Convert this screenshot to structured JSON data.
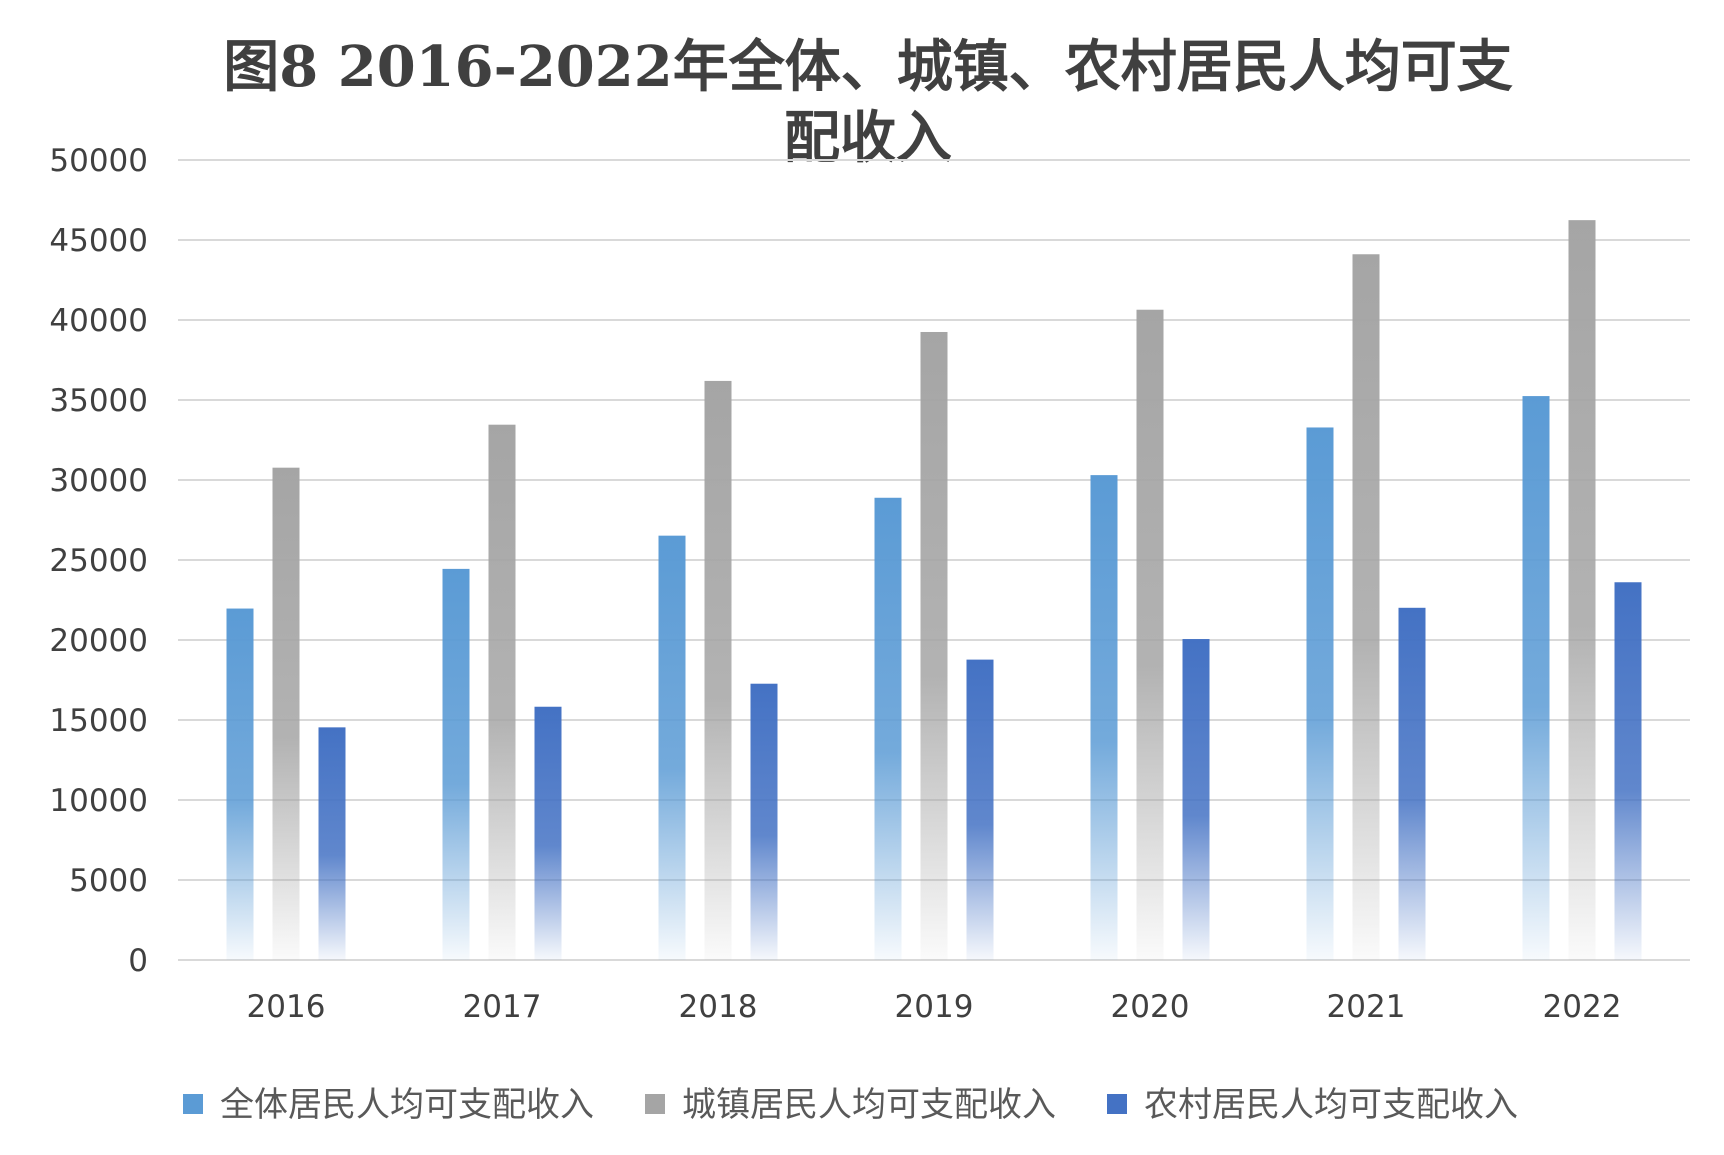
{
  "chart_data": {
    "type": "bar",
    "title_line1": "图8 2016-2022年全体、城镇、农村居民人均可支",
    "title_line2": "配收入",
    "categories": [
      "2016",
      "2017",
      "2018",
      "2019",
      "2020",
      "2021",
      "2022"
    ],
    "ylim": [
      0,
      50000
    ],
    "yticks": [
      0,
      5000,
      10000,
      15000,
      20000,
      25000,
      30000,
      35000,
      40000,
      45000,
      50000
    ],
    "grid": true,
    "legend_position": "bottom",
    "series": [
      {
        "name": "全体居民人均可支配收入",
        "color": "#5B9BD5",
        "values": [
          21966,
          24445,
          26521,
          28890,
          30305,
          33283,
          35245
        ]
      },
      {
        "name": "城镇居民人均可支配收入",
        "color": "#A5A5A5",
        "values": [
          30770,
          33457,
          36192,
          39251,
          40642,
          44109,
          46241
        ]
      },
      {
        "name": "农村居民人均可支配收入",
        "color": "#4472C4",
        "values": [
          14540,
          15829,
          17268,
          18774,
          20060,
          22013,
          23609
        ]
      }
    ]
  }
}
